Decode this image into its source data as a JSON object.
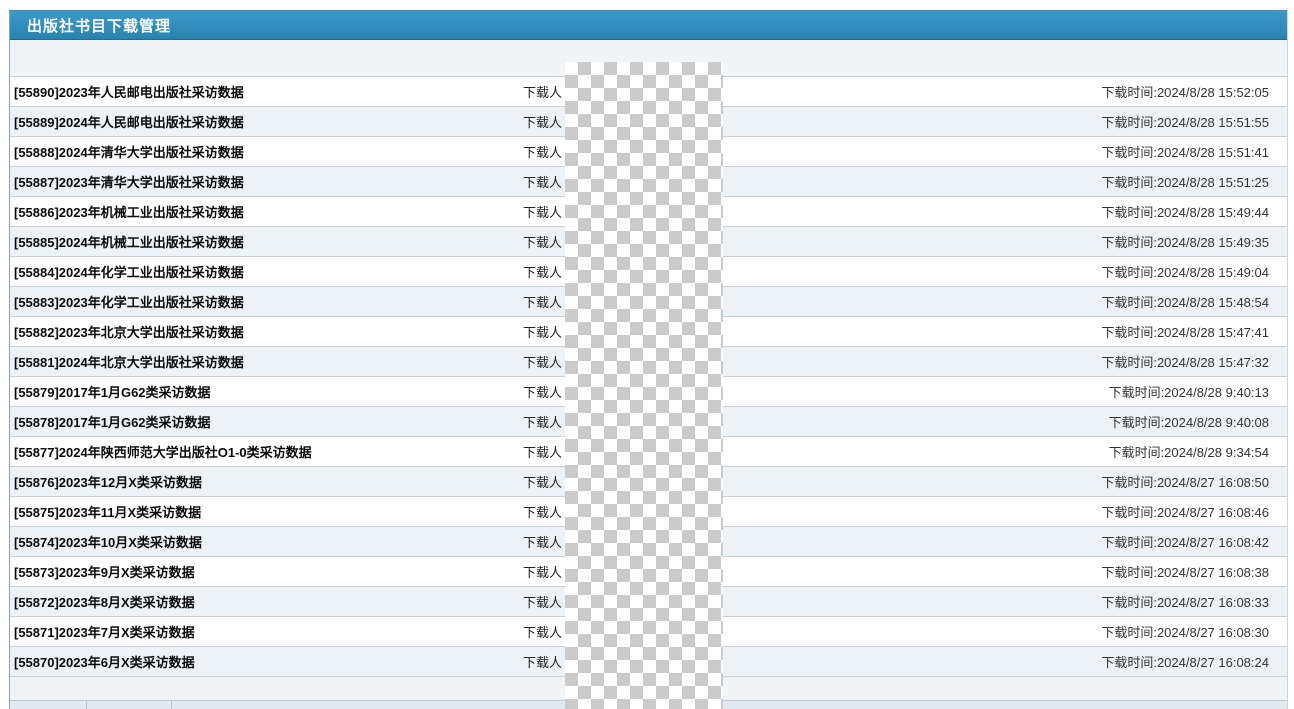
{
  "header": {
    "title": "出版社书目下载管理"
  },
  "labels": {
    "downloader": "下载人",
    "time_prefix": "下载时间:"
  },
  "colors": {
    "titlebar_blue": "#2f8cba",
    "row_alt_bg": "#edf2f6",
    "row_separator": "#c9cfd4",
    "redaction_gray": "#cbcbcb"
  },
  "rows": [
    {
      "title": "[55890]2023年人民邮电出版社采访数据",
      "time": "2024/8/28 15:52:05"
    },
    {
      "title": "[55889]2024年人民邮电出版社采访数据",
      "time": "2024/8/28 15:51:55"
    },
    {
      "title": "[55888]2024年清华大学出版社采访数据",
      "time": "2024/8/28 15:51:41"
    },
    {
      "title": "[55887]2023年清华大学出版社采访数据",
      "time": "2024/8/28 15:51:25"
    },
    {
      "title": "[55886]2023年机械工业出版社采访数据",
      "time": "2024/8/28 15:49:44"
    },
    {
      "title": "[55885]2024年机械工业出版社采访数据",
      "time": "2024/8/28 15:49:35"
    },
    {
      "title": "[55884]2024年化学工业出版社采访数据",
      "time": "2024/8/28 15:49:04"
    },
    {
      "title": "[55883]2023年化学工业出版社采访数据",
      "time": "2024/8/28 15:48:54"
    },
    {
      "title": "[55882]2023年北京大学出版社采访数据",
      "time": "2024/8/28 15:47:41"
    },
    {
      "title": "[55881]2024年北京大学出版社采访数据",
      "time": "2024/8/28 15:47:32"
    },
    {
      "title": "[55879]2017年1月G62类采访数据",
      "time": "2024/8/28 9:40:13"
    },
    {
      "title": "[55878]2017年1月G62类采访数据",
      "time": "2024/8/28 9:40:08"
    },
    {
      "title": "[55877]2024年陕西师范大学出版社O1-0类采访数据",
      "time": "2024/8/28 9:34:54"
    },
    {
      "title": "[55876]2023年12月X类采访数据",
      "time": "2024/8/27 16:08:50"
    },
    {
      "title": "[55875]2023年11月X类采访数据",
      "time": "2024/8/27 16:08:46"
    },
    {
      "title": "[55874]2023年10月X类采访数据",
      "time": "2024/8/27 16:08:42"
    },
    {
      "title": "[55873]2023年9月X类采访数据",
      "time": "2024/8/27 16:08:38"
    },
    {
      "title": "[55872]2023年8月X类采访数据",
      "time": "2024/8/27 16:08:33"
    },
    {
      "title": "[55871]2023年7月X类采访数据",
      "time": "2024/8/27 16:08:30"
    },
    {
      "title": "[55870]2023年6月X类采访数据",
      "time": "2024/8/27 16:08:24"
    }
  ]
}
